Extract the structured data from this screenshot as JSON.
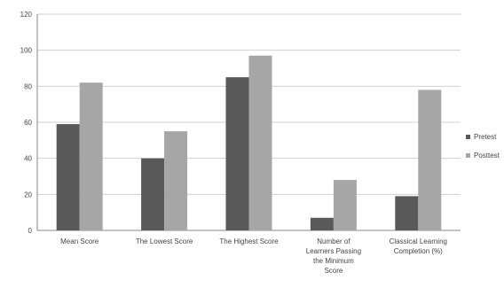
{
  "chart_data": {
    "type": "bar",
    "categories": [
      [
        "Mean Score"
      ],
      [
        "The Lowest Score"
      ],
      [
        "The Highest Score"
      ],
      [
        "Number of",
        "Learners Passing",
        "the Minimum",
        "Score"
      ],
      [
        "Classical Learning",
        "Completion (%)"
      ]
    ],
    "series": [
      {
        "name": "Pretest",
        "values": [
          59,
          40,
          85,
          7,
          19
        ],
        "color": "#595959"
      },
      {
        "name": "Posttest",
        "values": [
          82,
          55,
          97,
          28,
          78
        ],
        "color": "#a6a6a6"
      }
    ],
    "yticks": [
      "0",
      "20",
      "40",
      "60",
      "80",
      "100",
      "120"
    ],
    "ylim": [
      0,
      120
    ],
    "grid": true,
    "legend_position": "right",
    "title": "",
    "xlabel": "",
    "ylabel": ""
  }
}
